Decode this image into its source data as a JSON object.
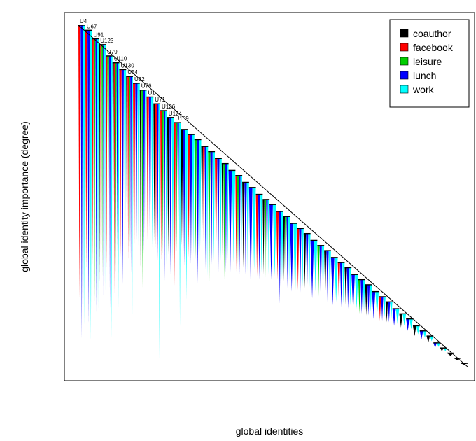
{
  "chart_data": {
    "type": "bar",
    "title": "",
    "xlabel": "global identities",
    "ylabel": "global identity importance (degree)",
    "grid": false,
    "legend_position": "top-right",
    "legend": [
      {
        "name": "coauthor",
        "color": "#000000"
      },
      {
        "name": "facebook",
        "color": "#ff0000"
      },
      {
        "name": "leisure",
        "color": "#00cd00"
      },
      {
        "name": "lunch",
        "color": "#0000ff"
      },
      {
        "name": "work",
        "color": "#00ffff"
      }
    ],
    "labeled_identities": [
      "U4",
      "U67",
      "U91",
      "U123",
      "U79",
      "U110",
      "U130",
      "U54",
      "U32",
      "U76",
      "U1",
      "U71",
      "U126",
      "U124",
      "U109"
    ],
    "identities": [
      {
        "label": "U4",
        "degree": 1.0,
        "layers": [
          {
            "layer": "facebook",
            "depth": 0.8
          },
          {
            "layer": "lunch",
            "depth": 0.92
          },
          {
            "layer": "work",
            "depth": 0.88
          }
        ]
      },
      {
        "label": "U67",
        "degree": 0.985,
        "layers": [
          {
            "layer": "facebook",
            "depth": 0.7
          },
          {
            "layer": "lunch",
            "depth": 0.86
          },
          {
            "layer": "work",
            "depth": 0.91
          }
        ]
      },
      {
        "label": "U91",
        "degree": 0.96,
        "layers": [
          {
            "layer": "facebook",
            "depth": 0.66
          },
          {
            "layer": "leisure",
            "depth": 0.77
          },
          {
            "layer": "lunch",
            "depth": 0.8
          },
          {
            "layer": "work",
            "depth": 0.79
          }
        ]
      },
      {
        "label": "U123",
        "degree": 0.943,
        "layers": [
          {
            "layer": "coauthor",
            "depth": 0.7
          },
          {
            "layer": "facebook",
            "depth": 0.75
          },
          {
            "layer": "leisure",
            "depth": 0.68
          },
          {
            "layer": "lunch",
            "depth": 0.8
          },
          {
            "layer": "work",
            "depth": 0.72
          }
        ]
      },
      {
        "label": "U79",
        "degree": 0.91,
        "layers": [
          {
            "layer": "facebook",
            "depth": 0.62
          },
          {
            "layer": "leisure",
            "depth": 0.58
          },
          {
            "layer": "lunch",
            "depth": 0.74
          },
          {
            "layer": "work",
            "depth": 0.83
          }
        ]
      },
      {
        "label": "U110",
        "degree": 0.89,
        "layers": [
          {
            "layer": "coauthor",
            "depth": 0.58
          },
          {
            "layer": "facebook",
            "depth": 0.68
          },
          {
            "layer": "leisure",
            "depth": 0.62
          },
          {
            "layer": "lunch",
            "depth": 0.55
          },
          {
            "layer": "work",
            "depth": 0.72
          }
        ]
      },
      {
        "label": "U130",
        "degree": 0.87,
        "layers": [
          {
            "layer": "facebook",
            "depth": 0.55
          },
          {
            "layer": "lunch",
            "depth": 0.63
          },
          {
            "layer": "work",
            "depth": 0.6
          }
        ]
      },
      {
        "label": "U54",
        "degree": 0.85,
        "layers": [
          {
            "layer": "coauthor",
            "depth": 0.5
          },
          {
            "layer": "facebook",
            "depth": 0.54
          },
          {
            "layer": "leisure",
            "depth": 0.5
          },
          {
            "layer": "lunch",
            "depth": 0.58
          },
          {
            "layer": "work",
            "depth": 0.7
          }
        ]
      },
      {
        "label": "U32",
        "degree": 0.83,
        "layers": [
          {
            "layer": "facebook",
            "depth": 0.62
          },
          {
            "layer": "lunch",
            "depth": 0.5
          },
          {
            "layer": "work",
            "depth": 0.52
          }
        ]
      },
      {
        "label": "U76",
        "degree": 0.81,
        "layers": [
          {
            "layer": "coauthor",
            "depth": 0.52
          },
          {
            "layer": "leisure",
            "depth": 0.58
          },
          {
            "layer": "lunch",
            "depth": 0.48
          },
          {
            "layer": "work",
            "depth": 0.5
          }
        ]
      },
      {
        "label": "U1",
        "degree": 0.79,
        "layers": [
          {
            "layer": "facebook",
            "depth": 0.46
          },
          {
            "layer": "lunch",
            "depth": 0.52
          },
          {
            "layer": "work",
            "depth": 0.44
          }
        ]
      },
      {
        "label": "U71",
        "degree": 0.77,
        "layers": [
          {
            "layer": "coauthor",
            "depth": 0.4
          },
          {
            "layer": "facebook",
            "depth": 0.42
          },
          {
            "layer": "lunch",
            "depth": 0.46
          },
          {
            "layer": "work",
            "depth": 0.75
          }
        ]
      },
      {
        "label": "U126",
        "degree": 0.75,
        "layers": [
          {
            "layer": "facebook",
            "depth": 0.44
          },
          {
            "layer": "leisure",
            "depth": 0.42
          },
          {
            "layer": "lunch",
            "depth": 0.5
          },
          {
            "layer": "work",
            "depth": 0.45
          }
        ]
      },
      {
        "label": "U124",
        "degree": 0.73,
        "layers": [
          {
            "layer": "coauthor",
            "depth": 0.4
          },
          {
            "layer": "lunch",
            "depth": 0.46
          },
          {
            "layer": "work",
            "depth": 0.42
          }
        ]
      },
      {
        "label": "U109",
        "degree": 0.715,
        "layers": [
          {
            "layer": "facebook",
            "depth": 0.48
          },
          {
            "layer": "leisure",
            "depth": 0.38
          },
          {
            "layer": "lunch",
            "depth": 0.42
          },
          {
            "layer": "work",
            "depth": 0.6
          }
        ]
      },
      {
        "label": "",
        "degree": 0.695,
        "layers": [
          {
            "layer": "coauthor",
            "depth": 0.34
          },
          {
            "layer": "lunch",
            "depth": 0.4
          },
          {
            "layer": "work",
            "depth": 0.5
          }
        ]
      },
      {
        "label": "",
        "degree": 0.68,
        "layers": [
          {
            "layer": "facebook",
            "depth": 0.36
          },
          {
            "layer": "lunch",
            "depth": 0.38
          },
          {
            "layer": "work",
            "depth": 0.35
          }
        ]
      },
      {
        "label": "",
        "degree": 0.665,
        "layers": [
          {
            "layer": "leisure",
            "depth": 0.35
          },
          {
            "layer": "lunch",
            "depth": 0.42
          },
          {
            "layer": "work",
            "depth": 0.33
          }
        ]
      },
      {
        "label": "",
        "degree": 0.645,
        "layers": [
          {
            "layer": "coauthor",
            "depth": 0.3
          },
          {
            "layer": "facebook",
            "depth": 0.34
          },
          {
            "layer": "lunch",
            "depth": 0.36
          },
          {
            "layer": "work",
            "depth": 0.38
          }
        ]
      },
      {
        "label": "",
        "degree": 0.63,
        "layers": [
          {
            "layer": "leisure",
            "depth": 0.4
          },
          {
            "layer": "lunch",
            "depth": 0.33
          },
          {
            "layer": "work",
            "depth": 0.32
          }
        ]
      },
      {
        "label": "",
        "degree": 0.61,
        "layers": [
          {
            "layer": "facebook",
            "depth": 0.31
          },
          {
            "layer": "lunch",
            "depth": 0.35
          },
          {
            "layer": "work",
            "depth": 0.3
          }
        ]
      },
      {
        "label": "",
        "degree": 0.595,
        "layers": [
          {
            "layer": "coauthor",
            "depth": 0.28
          },
          {
            "layer": "leisure",
            "depth": 0.34
          },
          {
            "layer": "lunch",
            "depth": 0.32
          },
          {
            "layer": "work",
            "depth": 0.28
          }
        ]
      },
      {
        "label": "",
        "degree": 0.575,
        "layers": [
          {
            "layer": "lunch",
            "depth": 0.3
          },
          {
            "layer": "work",
            "depth": 0.27
          }
        ]
      },
      {
        "label": "",
        "degree": 0.56,
        "layers": [
          {
            "layer": "facebook",
            "depth": 0.28
          },
          {
            "layer": "leisure",
            "depth": 0.26
          },
          {
            "layer": "lunch",
            "depth": 0.29
          },
          {
            "layer": "work",
            "depth": 0.27
          }
        ]
      },
      {
        "label": "",
        "degree": 0.54,
        "layers": [
          {
            "layer": "coauthor",
            "depth": 0.25
          },
          {
            "layer": "lunch",
            "depth": 0.27
          },
          {
            "layer": "work",
            "depth": 0.3
          }
        ]
      },
      {
        "label": "",
        "degree": 0.525,
        "layers": [
          {
            "layer": "lunch",
            "depth": 0.3
          },
          {
            "layer": "work",
            "depth": 0.24
          }
        ]
      },
      {
        "label": "",
        "degree": 0.505,
        "layers": [
          {
            "layer": "facebook",
            "depth": 0.24
          },
          {
            "layer": "lunch",
            "depth": 0.25
          },
          {
            "layer": "work",
            "depth": 0.23
          }
        ]
      },
      {
        "label": "",
        "degree": 0.49,
        "layers": [
          {
            "layer": "coauthor",
            "depth": 0.22
          },
          {
            "layer": "leisure",
            "depth": 0.23
          },
          {
            "layer": "lunch",
            "depth": 0.24
          },
          {
            "layer": "work",
            "depth": 0.22
          }
        ]
      },
      {
        "label": "",
        "degree": 0.475,
        "layers": [
          {
            "layer": "lunch",
            "depth": 0.22
          },
          {
            "layer": "work",
            "depth": 0.21
          }
        ]
      },
      {
        "label": "",
        "degree": 0.455,
        "layers": [
          {
            "layer": "facebook",
            "depth": 0.2
          },
          {
            "layer": "lunch",
            "depth": 0.27
          },
          {
            "layer": "work",
            "depth": 0.2
          }
        ]
      },
      {
        "label": "",
        "degree": 0.44,
        "layers": [
          {
            "layer": "coauthor",
            "depth": 0.19
          },
          {
            "layer": "leisure",
            "depth": 0.2
          },
          {
            "layer": "lunch",
            "depth": 0.21
          },
          {
            "layer": "work",
            "depth": 0.19
          }
        ]
      },
      {
        "label": "",
        "degree": 0.42,
        "layers": [
          {
            "layer": "lunch",
            "depth": 0.2
          },
          {
            "layer": "work",
            "depth": 0.23
          }
        ]
      },
      {
        "label": "",
        "degree": 0.405,
        "layers": [
          {
            "layer": "facebook",
            "depth": 0.18
          },
          {
            "layer": "lunch",
            "depth": 0.19
          },
          {
            "layer": "work",
            "depth": 0.17
          }
        ]
      },
      {
        "label": "",
        "degree": 0.39,
        "layers": [
          {
            "layer": "coauthor",
            "depth": 0.16
          },
          {
            "layer": "lunch",
            "depth": 0.18
          },
          {
            "layer": "work",
            "depth": 0.16
          }
        ]
      },
      {
        "label": "",
        "degree": 0.37,
        "layers": [
          {
            "layer": "lunch",
            "depth": 0.17
          },
          {
            "layer": "work",
            "depth": 0.15
          }
        ]
      },
      {
        "label": "",
        "degree": 0.355,
        "layers": [
          {
            "layer": "leisure",
            "depth": 0.15
          },
          {
            "layer": "lunch",
            "depth": 0.16
          },
          {
            "layer": "work",
            "depth": 0.15
          }
        ]
      },
      {
        "label": "",
        "degree": 0.34,
        "layers": [
          {
            "layer": "coauthor",
            "depth": 0.14
          },
          {
            "layer": "lunch",
            "depth": 0.15
          },
          {
            "layer": "work",
            "depth": 0.14
          }
        ]
      },
      {
        "label": "",
        "degree": 0.32,
        "layers": [
          {
            "layer": "lunch",
            "depth": 0.14
          },
          {
            "layer": "work",
            "depth": 0.13
          }
        ]
      },
      {
        "label": "",
        "degree": 0.305,
        "layers": [
          {
            "layer": "facebook",
            "depth": 0.12
          },
          {
            "layer": "lunch",
            "depth": 0.13
          },
          {
            "layer": "work",
            "depth": 0.12
          }
        ]
      },
      {
        "label": "",
        "degree": 0.29,
        "layers": [
          {
            "layer": "coauthor",
            "depth": 0.11
          },
          {
            "layer": "lunch",
            "depth": 0.12
          },
          {
            "layer": "work",
            "depth": 0.11
          }
        ]
      },
      {
        "label": "",
        "degree": 0.27,
        "layers": [
          {
            "layer": "lunch",
            "depth": 0.11
          },
          {
            "layer": "work",
            "depth": 0.1
          }
        ]
      },
      {
        "label": "",
        "degree": 0.255,
        "layers": [
          {
            "layer": "leisure",
            "depth": 0.1
          },
          {
            "layer": "lunch",
            "depth": 0.1
          },
          {
            "layer": "work",
            "depth": 0.09
          }
        ]
      },
      {
        "label": "",
        "degree": 0.24,
        "layers": [
          {
            "layer": "coauthor",
            "depth": 0.09
          },
          {
            "layer": "lunch",
            "depth": 0.09
          },
          {
            "layer": "work",
            "depth": 0.08
          }
        ]
      },
      {
        "label": "",
        "degree": 0.22,
        "layers": [
          {
            "layer": "lunch",
            "depth": 0.08
          },
          {
            "layer": "work",
            "depth": 0.07
          }
        ]
      },
      {
        "label": "",
        "degree": 0.205,
        "layers": [
          {
            "layer": "facebook",
            "depth": 0.07
          },
          {
            "layer": "lunch",
            "depth": 0.07
          },
          {
            "layer": "work",
            "depth": 0.06
          }
        ]
      },
      {
        "label": "",
        "degree": 0.19,
        "layers": [
          {
            "layer": "coauthor",
            "depth": 0.06
          },
          {
            "layer": "lunch",
            "depth": 0.06
          },
          {
            "layer": "work",
            "depth": 0.05
          }
        ]
      },
      {
        "label": "",
        "degree": 0.17,
        "layers": [
          {
            "layer": "lunch",
            "depth": 0.05
          },
          {
            "layer": "work",
            "depth": 0.045
          }
        ]
      },
      {
        "label": "",
        "degree": 0.155,
        "layers": [
          {
            "layer": "coauthor",
            "depth": 0.04
          },
          {
            "layer": "work",
            "depth": 0.035
          }
        ]
      },
      {
        "label": "",
        "degree": 0.14,
        "layers": [
          {
            "layer": "lunch",
            "depth": 0.035
          },
          {
            "layer": "work",
            "depth": 0.03
          }
        ]
      },
      {
        "label": "",
        "degree": 0.12,
        "layers": [
          {
            "layer": "coauthor",
            "depth": 0.03
          },
          {
            "layer": "work",
            "depth": 0.025
          }
        ]
      },
      {
        "label": "",
        "degree": 0.105,
        "layers": [
          {
            "layer": "lunch",
            "depth": 0.025
          },
          {
            "layer": "work",
            "depth": 0.02
          }
        ]
      },
      {
        "label": "",
        "degree": 0.09,
        "layers": [
          {
            "layer": "coauthor",
            "depth": 0.02
          },
          {
            "layer": "work",
            "depth": 0.015
          }
        ]
      },
      {
        "label": "",
        "degree": 0.07,
        "layers": [
          {
            "layer": "lunch",
            "depth": 0.015
          },
          {
            "layer": "work",
            "depth": 0.012
          }
        ]
      },
      {
        "label": "",
        "degree": 0.055,
        "layers": [
          {
            "layer": "coauthor",
            "depth": 0.01
          },
          {
            "layer": "work",
            "depth": 0.01
          }
        ]
      },
      {
        "label": "",
        "degree": 0.04,
        "layers": [
          {
            "layer": "coauthor",
            "depth": 0.008
          }
        ]
      },
      {
        "label": "",
        "degree": 0.025,
        "layers": [
          {
            "layer": "coauthor",
            "depth": 0.006
          }
        ]
      },
      {
        "label": "",
        "degree": 0.01,
        "layers": [
          {
            "layer": "coauthor",
            "depth": 0.004
          }
        ]
      }
    ],
    "trend_line": {
      "from": [
        0,
        1.0
      ],
      "to": [
        1,
        0.0
      ]
    }
  }
}
